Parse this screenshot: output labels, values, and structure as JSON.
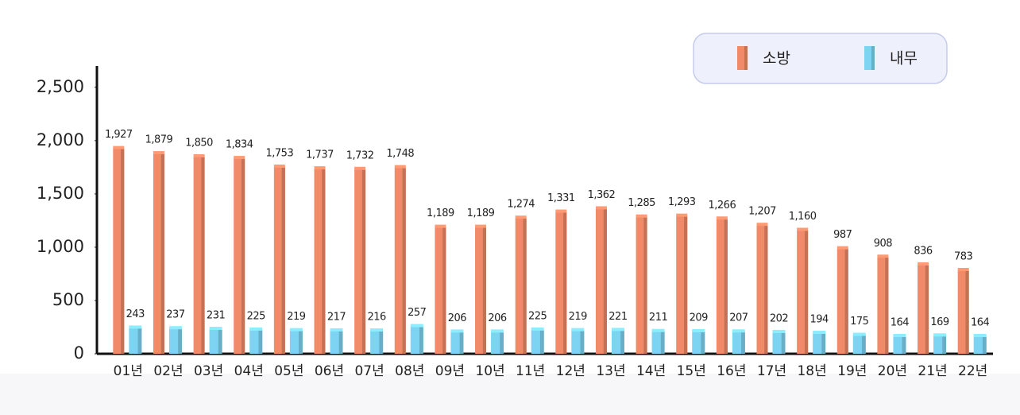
{
  "chart_data": {
    "type": "bar",
    "categories": [
      "01년",
      "02년",
      "03년",
      "04년",
      "05년",
      "06년",
      "07년",
      "08년",
      "09년",
      "10년",
      "11년",
      "12년",
      "13년",
      "14년",
      "15년",
      "16년",
      "17년",
      "18년",
      "19년",
      "20년",
      "21년",
      "22년"
    ],
    "series": [
      {
        "name": "소방",
        "color": "#f08a68",
        "values": [
          1927,
          1879,
          1850,
          1834,
          1753,
          1737,
          1732,
          1748,
          1189,
          1189,
          1274,
          1331,
          1362,
          1285,
          1293,
          1266,
          1207,
          1160,
          987,
          908,
          836,
          783
        ],
        "value_labels": [
          "1,927",
          "1,879",
          "1,850",
          "1,834",
          "1,753",
          "1,737",
          "1,732",
          "1,748",
          "1,189",
          "1,189",
          "1,274",
          "1,331",
          "1,362",
          "1,285",
          "1,293",
          "1,266",
          "1,207",
          "1,160",
          "987",
          "908",
          "836",
          "783"
        ]
      },
      {
        "name": "내무",
        "color": "#7dd4f2",
        "values": [
          243,
          237,
          231,
          225,
          219,
          217,
          216,
          257,
          206,
          206,
          225,
          219,
          221,
          211,
          209,
          207,
          202,
          194,
          175,
          164,
          169,
          164
        ]
      }
    ],
    "ylim": [
      0,
      2700
    ],
    "yticks": [
      0,
      500,
      {
        "value": 1000,
        "label": "1,000"
      },
      {
        "value": 1500,
        "label": "1,500"
      },
      {
        "value": 2000,
        "label": "2,000"
      },
      {
        "value": 2500,
        "label": "2,500"
      }
    ],
    "legend": "top-right"
  }
}
